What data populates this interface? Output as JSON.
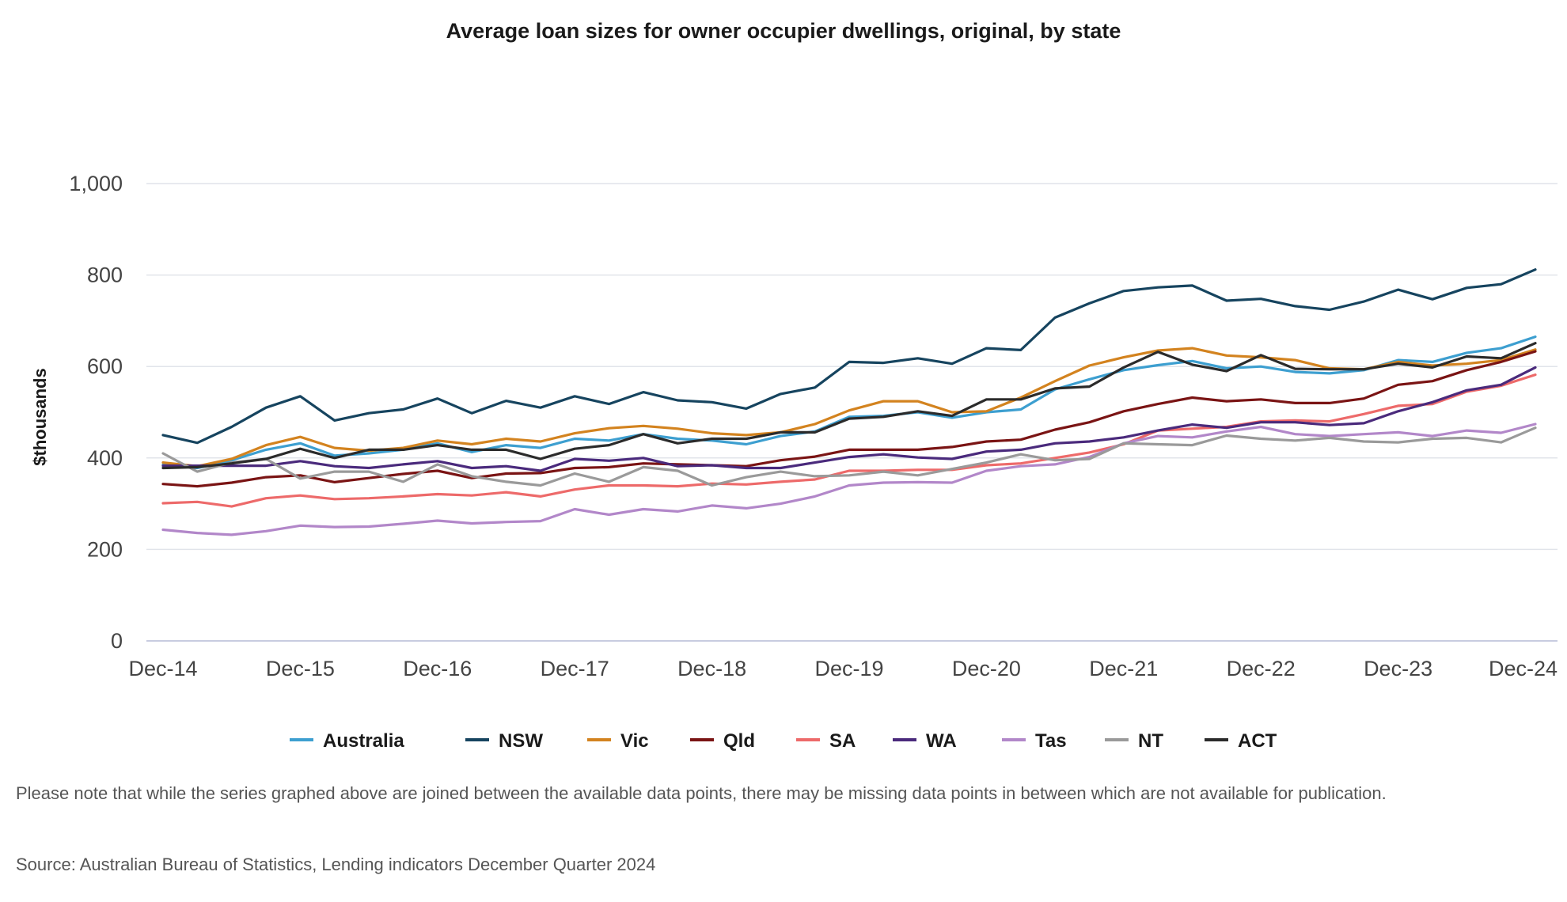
{
  "chart_data": {
    "type": "line",
    "title": "Average loan sizes for owner occupier dwellings, original, by state",
    "ylabel": "$thousands",
    "xlabel": "",
    "ylim": [
      0,
      1000
    ],
    "yticks": [
      0,
      200,
      400,
      600,
      800,
      1000
    ],
    "ytick_labels": [
      "0",
      "200",
      "400",
      "600",
      "800",
      "1,000"
    ],
    "x_tick_labels": [
      "Dec-14",
      "Dec-15",
      "Dec-16",
      "Dec-17",
      "Dec-18",
      "Dec-19",
      "Dec-20",
      "Dec-21",
      "Dec-22",
      "Dec-23",
      "Dec-24"
    ],
    "x_tick_index": [
      0,
      4,
      8,
      12,
      16,
      20,
      24,
      28,
      32,
      36,
      40
    ],
    "x": [
      "Dec-14",
      "Mar-15",
      "Jun-15",
      "Sep-15",
      "Dec-15",
      "Mar-16",
      "Jun-16",
      "Sep-16",
      "Dec-16",
      "Mar-17",
      "Jun-17",
      "Sep-17",
      "Dec-17",
      "Mar-18",
      "Jun-18",
      "Sep-18",
      "Dec-18",
      "Mar-19",
      "Jun-19",
      "Sep-19",
      "Dec-19",
      "Mar-20",
      "Jun-20",
      "Sep-20",
      "Dec-20",
      "Mar-21",
      "Jun-21",
      "Sep-21",
      "Dec-21",
      "Mar-22",
      "Jun-22",
      "Sep-22",
      "Dec-22",
      "Mar-23",
      "Jun-23",
      "Sep-23",
      "Dec-23",
      "Mar-24",
      "Jun-24",
      "Sep-24",
      "Dec-24"
    ],
    "grid": true,
    "legend_position": "bottom",
    "series": [
      {
        "name": "Australia",
        "color": "#3d9fd0",
        "values": [
          385,
          378,
          395,
          418,
          432,
          405,
          410,
          418,
          432,
          413,
          428,
          422,
          442,
          438,
          452,
          442,
          438,
          430,
          448,
          458,
          490,
          492,
          500,
          488,
          500,
          506,
          550,
          572,
          592,
          603,
          612,
          596,
          600,
          588,
          585,
          592,
          614,
          610,
          630,
          640,
          665
        ]
      },
      {
        "name": "NSW",
        "color": "#16445f",
        "values": [
          450,
          433,
          468,
          510,
          535,
          482,
          498,
          506,
          530,
          498,
          525,
          510,
          535,
          518,
          544,
          526,
          522,
          508,
          540,
          554,
          610,
          608,
          618,
          606,
          640,
          636,
          707,
          738,
          765,
          773,
          777,
          744,
          748,
          732,
          724,
          742,
          768,
          747,
          772,
          780,
          812
        ]
      },
      {
        "name": "Vic",
        "color": "#d3831f",
        "values": [
          390,
          382,
          398,
          428,
          446,
          422,
          416,
          422,
          438,
          430,
          442,
          436,
          454,
          465,
          470,
          464,
          454,
          450,
          456,
          474,
          504,
          524,
          524,
          500,
          502,
          532,
          568,
          602,
          620,
          635,
          640,
          624,
          620,
          614,
          596,
          594,
          610,
          602,
          606,
          614,
          637
        ]
      },
      {
        "name": "Qld",
        "color": "#7a1414",
        "values": [
          343,
          338,
          346,
          358,
          362,
          347,
          356,
          365,
          372,
          356,
          366,
          367,
          378,
          380,
          388,
          386,
          384,
          382,
          395,
          403,
          418,
          418,
          418,
          424,
          436,
          440,
          462,
          478,
          502,
          518,
          532,
          524,
          528,
          520,
          520,
          530,
          560,
          568,
          592,
          610,
          633
        ]
      },
      {
        "name": "SA",
        "color": "#ed6a6a",
        "values": [
          301,
          304,
          294,
          312,
          318,
          310,
          312,
          316,
          321,
          318,
          325,
          316,
          331,
          340,
          340,
          338,
          344,
          342,
          348,
          353,
          372,
          372,
          374,
          374,
          384,
          388,
          400,
          412,
          430,
          460,
          464,
          468,
          480,
          482,
          480,
          496,
          514,
          518,
          545,
          558,
          582
        ]
      },
      {
        "name": "WA",
        "color": "#4a2a7c",
        "values": [
          383,
          383,
          383,
          383,
          393,
          382,
          378,
          386,
          393,
          378,
          382,
          372,
          398,
          394,
          400,
          382,
          384,
          378,
          378,
          390,
          402,
          408,
          401,
          398,
          414,
          418,
          432,
          436,
          445,
          460,
          473,
          466,
          478,
          478,
          472,
          476,
          502,
          522,
          548,
          560,
          598
        ]
      },
      {
        "name": "Tas",
        "color": "#b287c9",
        "values": [
          243,
          236,
          232,
          240,
          252,
          249,
          250,
          256,
          263,
          257,
          260,
          262,
          288,
          276,
          288,
          283,
          296,
          290,
          300,
          316,
          340,
          346,
          347,
          346,
          372,
          382,
          386,
          402,
          432,
          448,
          445,
          458,
          468,
          452,
          448,
          452,
          456,
          448,
          460,
          455,
          474
        ]
      },
      {
        "name": "NT",
        "color": "#9a9a9a",
        "values": [
          410,
          370,
          390,
          398,
          355,
          370,
          370,
          348,
          386,
          360,
          348,
          340,
          366,
          348,
          380,
          372,
          340,
          358,
          370,
          360,
          362,
          370,
          362,
          376,
          390,
          408,
          395,
          398,
          432,
          430,
          428,
          449,
          442,
          438,
          444,
          436,
          434,
          442,
          444,
          434,
          466
        ]
      },
      {
        "name": "ACT",
        "color": "#2b2b2b",
        "values": [
          378,
          380,
          388,
          398,
          420,
          400,
          418,
          418,
          428,
          418,
          418,
          398,
          420,
          428,
          452,
          432,
          442,
          442,
          456,
          456,
          486,
          490,
          502,
          492,
          528,
          528,
          552,
          556,
          598,
          632,
          604,
          590,
          625,
          595,
          594,
          594,
          606,
          598,
          622,
          618,
          651
        ]
      }
    ]
  },
  "footnote": "Please note that while the series graphed above are joined between the available data points, there may be missing data points in between which are not available for publication.",
  "source": "Source: Australian Bureau of Statistics, Lending indicators December Quarter 2024"
}
